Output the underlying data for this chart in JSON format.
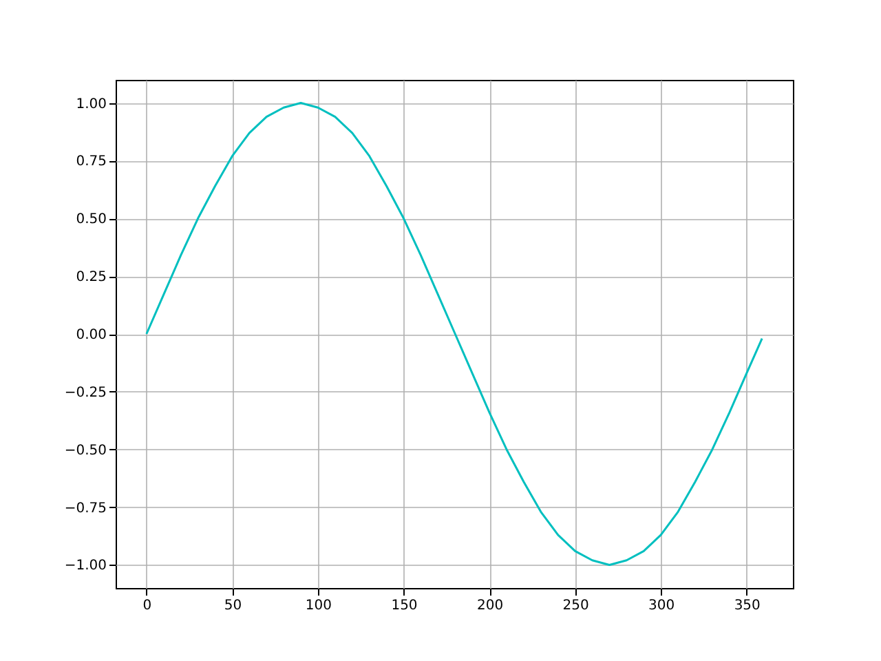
{
  "chart_data": {
    "type": "line",
    "x": [
      0,
      10,
      20,
      30,
      40,
      50,
      60,
      70,
      80,
      90,
      100,
      110,
      120,
      130,
      140,
      150,
      160,
      170,
      180,
      190,
      200,
      210,
      220,
      230,
      240,
      250,
      260,
      270,
      280,
      290,
      300,
      310,
      320,
      330,
      340,
      350,
      359
    ],
    "series": [
      {
        "color": "#00bfbf",
        "values": [
          0,
          0.17,
          0.34,
          0.5,
          0.64,
          0.77,
          0.87,
          0.94,
          0.98,
          1.0,
          0.98,
          0.94,
          0.87,
          0.77,
          0.64,
          0.5,
          0.34,
          0.17,
          0,
          -0.17,
          -0.34,
          -0.5,
          -0.64,
          -0.77,
          -0.87,
          -0.94,
          -0.98,
          -1.0,
          -0.98,
          -0.94,
          -0.87,
          -0.77,
          -0.64,
          -0.5,
          -0.34,
          -0.17,
          -0.02
        ]
      }
    ],
    "xlim": [
      -18,
      377
    ],
    "ylim": [
      -1.1,
      1.1
    ],
    "xticks": [
      0,
      50,
      100,
      150,
      200,
      250,
      300,
      350
    ],
    "yticks": [
      {
        "value": -1,
        "label": "−1.00"
      },
      {
        "value": -0.75,
        "label": "−0.75"
      },
      {
        "value": -0.5,
        "label": "−0.50"
      },
      {
        "value": -0.25,
        "label": "−0.25"
      },
      {
        "value": 0,
        "label": "0.00"
      },
      {
        "value": 0.25,
        "label": "0.25"
      },
      {
        "value": 0.5,
        "label": "0.50"
      },
      {
        "value": 0.75,
        "label": "0.75"
      },
      {
        "value": 1,
        "label": "1.00"
      }
    ],
    "grid": true,
    "marker": "none",
    "line_style": "solid"
  }
}
